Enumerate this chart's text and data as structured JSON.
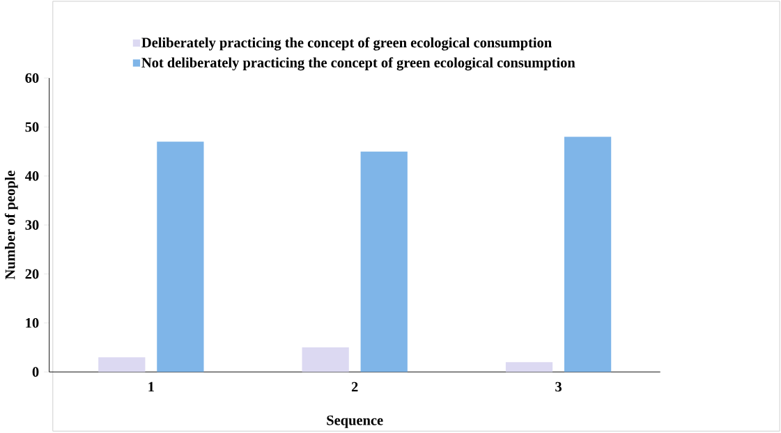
{
  "chart_data": {
    "type": "bar",
    "xlabel": "Sequence",
    "ylabel": "Number of people",
    "categories": [
      "1",
      "2",
      "3"
    ],
    "series": [
      {
        "name": "Deliberately practicing the concept of green ecological consumption",
        "color": "#dcd9f2",
        "values": [
          3,
          5,
          2
        ]
      },
      {
        "name": "Not deliberately practicing the concept of green ecological consumption",
        "color": "#7fb5e8",
        "values": [
          47,
          45,
          48
        ]
      }
    ],
    "ylim": [
      0,
      60
    ],
    "yticks": [
      0,
      10,
      20,
      30,
      40,
      50,
      60
    ],
    "grid": false,
    "legend": "top"
  }
}
